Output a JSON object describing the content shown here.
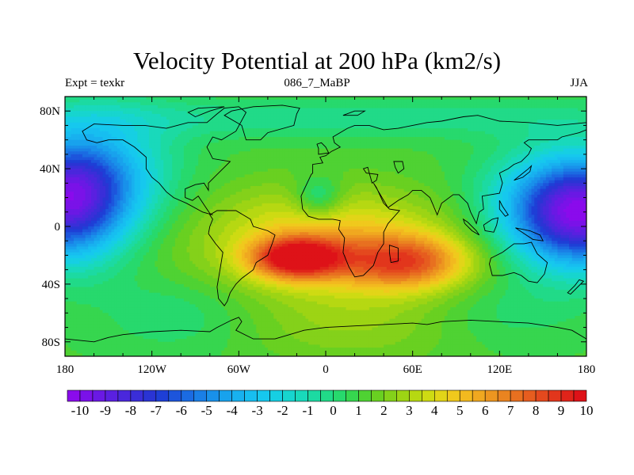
{
  "figure": {
    "title": "Velocity Potential at 200 hPa (km2/s)",
    "subtitle_left": "Expt = texkr",
    "subtitle_center": "086_7_MaBP",
    "subtitle_right": "JJA"
  },
  "axes": {
    "x_ticks": [
      {
        "value": -180,
        "label": "180"
      },
      {
        "value": -120,
        "label": "120W"
      },
      {
        "value": -60,
        "label": "60W"
      },
      {
        "value": 0,
        "label": "0"
      },
      {
        "value": 60,
        "label": "60E"
      },
      {
        "value": 120,
        "label": "120E"
      },
      {
        "value": 180,
        "label": "180"
      }
    ],
    "y_ticks": [
      {
        "value": 80,
        "label": "80N"
      },
      {
        "value": 40,
        "label": "40N"
      },
      {
        "value": 0,
        "label": "0"
      },
      {
        "value": -40,
        "label": "40S"
      },
      {
        "value": -80,
        "label": "80S"
      }
    ],
    "minor_x_step": 20,
    "minor_y_step": 10,
    "lon_range": [
      -180,
      180
    ],
    "lat_range": [
      -90,
      90
    ]
  },
  "colorbar": {
    "levels": [
      -10,
      -9.5,
      -9,
      -8.5,
      -8,
      -7.5,
      -7,
      -6.5,
      -6,
      -5.5,
      -5,
      -4.5,
      -4,
      -3.5,
      -3,
      -2.5,
      -2,
      -1.5,
      -1,
      -0.5,
      0,
      0.5,
      1,
      1.5,
      2,
      2.5,
      3,
      3.5,
      4,
      4.5,
      5,
      5.5,
      6,
      6.5,
      7,
      7.5,
      8,
      8.5,
      9,
      9.5,
      10
    ],
    "labels": [
      "-10",
      "-9",
      "-8",
      "-7",
      "-6",
      "-5",
      "-4",
      "-3",
      "-2",
      "-1",
      "0",
      "1",
      "2",
      "3",
      "4",
      "5",
      "6",
      "7",
      "8",
      "9",
      "10"
    ],
    "colors": [
      "#8a0bec",
      "#7a12e8",
      "#6a19e4",
      "#5a20e0",
      "#4a27dc",
      "#3a2ed8",
      "#2a34d4",
      "#1e3fd6",
      "#1d55dc",
      "#1b6be2",
      "#1a7fe6",
      "#1991ea",
      "#18a2ed",
      "#18b1ef",
      "#17bef0",
      "#16c8ee",
      "#16cfe3",
      "#17d5cf",
      "#19d9bb",
      "#1cdaa2",
      "#21da88",
      "#27d96d",
      "#36d64f",
      "#4fd233",
      "#69d021",
      "#84d11a",
      "#9dd414",
      "#b6d812",
      "#cedb13",
      "#e2d518",
      "#f0c91d",
      "#f2b91f",
      "#f0a820",
      "#ed9620",
      "#ea8420",
      "#e87020",
      "#e65d1f",
      "#e4491e",
      "#e2361c",
      "#e0241a",
      "#de1218"
    ]
  },
  "field": {
    "description_of_units": "km2/s",
    "base_value": 1.6,
    "centers": [
      {
        "lon": -180,
        "lat": 17,
        "amp": -9.5,
        "slon": 30,
        "slat": 28
      },
      {
        "lon": 180,
        "lat": 10,
        "amp": -9.5,
        "slon": 30,
        "slat": 26
      },
      {
        "lon": 145,
        "lat": 10,
        "amp": -3.5,
        "slon": 32,
        "slat": 28
      },
      {
        "lon": -150,
        "lat": 40,
        "amp": -3,
        "slon": 35,
        "slat": 30
      },
      {
        "lon": -20,
        "lat": -22,
        "amp": 7.5,
        "slon": 22,
        "slat": 10
      },
      {
        "lon": 55,
        "lat": -25,
        "amp": 5,
        "slon": 30,
        "slat": 13
      },
      {
        "lon": 10,
        "lat": -18,
        "amp": 3.5,
        "slon": 70,
        "slat": 24
      },
      {
        "lon": -10,
        "lat": 10,
        "amp": 1.2,
        "slon": 50,
        "slat": 18
      },
      {
        "lon": -5,
        "lat": 20,
        "amp": -2.6,
        "slon": 12,
        "slat": 10
      },
      {
        "lon": 20,
        "lat": -70,
        "amp": 1.2,
        "slon": 60,
        "slat": 18
      },
      {
        "lon": 0,
        "lat": 75,
        "amp": -1.5,
        "slon": 180,
        "slat": 10
      },
      {
        "lon": -100,
        "lat": -60,
        "amp": -1.2,
        "slon": 40,
        "slat": 20
      },
      {
        "lon": 120,
        "lat": -60,
        "amp": -1.0,
        "slon": 40,
        "slat": 18
      }
    ]
  },
  "coastlines": [
    {
      "name": "north-america",
      "points": [
        [
          -168,
          66
        ],
        [
          -160,
          71
        ],
        [
          -140,
          70
        ],
        [
          -125,
          70
        ],
        [
          -110,
          68
        ],
        [
          -95,
          72
        ],
        [
          -82,
          72
        ],
        [
          -75,
          78
        ],
        [
          -70,
          82
        ],
        [
          -60,
          83
        ],
        [
          -55,
          79
        ],
        [
          -62,
          66
        ],
        [
          -72,
          60
        ],
        [
          -78,
          62
        ],
        [
          -82,
          55
        ],
        [
          -78,
          47
        ],
        [
          -66,
          45
        ],
        [
          -70,
          41
        ],
        [
          -76,
          35
        ],
        [
          -81,
          30
        ],
        [
          -81,
          25
        ],
        [
          -84,
          30
        ],
        [
          -90,
          29
        ],
        [
          -97,
          26
        ],
        [
          -97,
          20
        ],
        [
          -92,
          18
        ],
        [
          -88,
          21
        ],
        [
          -84,
          15
        ],
        [
          -80,
          9
        ],
        [
          -78,
          8
        ],
        [
          -85,
          10
        ],
        [
          -96,
          16
        ],
        [
          -105,
          20
        ],
        [
          -110,
          24
        ],
        [
          -115,
          30
        ],
        [
          -120,
          34
        ],
        [
          -124,
          40
        ],
        [
          -124,
          48
        ],
        [
          -132,
          55
        ],
        [
          -140,
          60
        ],
        [
          -150,
          60
        ],
        [
          -158,
          58
        ],
        [
          -165,
          60
        ],
        [
          -168,
          66
        ]
      ]
    },
    {
      "name": "greenland",
      "points": [
        [
          -55,
          60
        ],
        [
          -45,
          60
        ],
        [
          -40,
          65
        ],
        [
          -22,
          70
        ],
        [
          -20,
          78
        ],
        [
          -18,
          82
        ],
        [
          -30,
          84
        ],
        [
          -50,
          83
        ],
        [
          -65,
          80
        ],
        [
          -70,
          77
        ],
        [
          -58,
          70
        ],
        [
          -55,
          60
        ]
      ]
    },
    {
      "name": "south-america",
      "points": [
        [
          -80,
          8
        ],
        [
          -75,
          11
        ],
        [
          -62,
          11
        ],
        [
          -52,
          5
        ],
        [
          -50,
          0
        ],
        [
          -40,
          -3
        ],
        [
          -35,
          -6
        ],
        [
          -37,
          -12
        ],
        [
          -40,
          -20
        ],
        [
          -48,
          -25
        ],
        [
          -50,
          -30
        ],
        [
          -58,
          -36
        ],
        [
          -62,
          -40
        ],
        [
          -66,
          -46
        ],
        [
          -68,
          -52
        ],
        [
          -70,
          -55
        ],
        [
          -74,
          -50
        ],
        [
          -75,
          -42
        ],
        [
          -73,
          -30
        ],
        [
          -71,
          -18
        ],
        [
          -76,
          -12
        ],
        [
          -81,
          -5
        ],
        [
          -80,
          0
        ],
        [
          -78,
          5
        ],
        [
          -80,
          8
        ]
      ]
    },
    {
      "name": "afro-eurasia",
      "points": [
        [
          -10,
          36
        ],
        [
          -17,
          21
        ],
        [
          -16,
          12
        ],
        [
          -12,
          7
        ],
        [
          -5,
          5
        ],
        [
          5,
          5
        ],
        [
          10,
          4
        ],
        [
          9,
          -2
        ],
        [
          13,
          -8
        ],
        [
          12,
          -18
        ],
        [
          16,
          -28
        ],
        [
          20,
          -35
        ],
        [
          26,
          -34
        ],
        [
          33,
          -27
        ],
        [
          36,
          -18
        ],
        [
          40,
          -12
        ],
        [
          40,
          -4
        ],
        [
          43,
          2
        ],
        [
          51,
          11
        ],
        [
          44,
          12
        ],
        [
          40,
          16
        ],
        [
          35,
          27
        ],
        [
          33,
          30
        ],
        [
          43,
          13
        ],
        [
          50,
          18
        ],
        [
          57,
          22
        ],
        [
          60,
          25
        ],
        [
          66,
          25
        ],
        [
          72,
          20
        ],
        [
          77,
          8
        ],
        [
          80,
          16
        ],
        [
          88,
          22
        ],
        [
          92,
          22
        ],
        [
          98,
          16
        ],
        [
          100,
          10
        ],
        [
          104,
          2
        ],
        [
          106,
          10
        ],
        [
          109,
          12
        ],
        [
          108,
          21
        ],
        [
          120,
          23
        ],
        [
          122,
          30
        ],
        [
          120,
          37
        ],
        [
          126,
          40
        ],
        [
          130,
          43
        ],
        [
          135,
          45
        ],
        [
          140,
          50
        ],
        [
          142,
          54
        ],
        [
          137,
          58
        ],
        [
          140,
          60
        ],
        [
          150,
          60
        ],
        [
          160,
          60
        ],
        [
          163,
          62
        ],
        [
          175,
          65
        ],
        [
          180,
          67
        ],
        [
          180,
          72
        ],
        [
          160,
          70
        ],
        [
          140,
          72
        ],
        [
          120,
          73
        ],
        [
          105,
          77
        ],
        [
          95,
          76
        ],
        [
          80,
          73
        ],
        [
          70,
          72
        ],
        [
          60,
          70
        ],
        [
          50,
          68
        ],
        [
          40,
          67
        ],
        [
          30,
          70
        ],
        [
          20,
          70
        ],
        [
          15,
          68
        ],
        [
          5,
          62
        ],
        [
          6,
          58
        ],
        [
          10,
          55
        ],
        [
          8,
          54
        ],
        [
          4,
          52
        ],
        [
          0,
          49
        ],
        [
          -4,
          48
        ],
        [
          -2,
          44
        ],
        [
          -9,
          43
        ],
        [
          -9,
          37
        ],
        [
          -10,
          36
        ]
      ]
    },
    {
      "name": "madagascar",
      "points": [
        [
          44,
          -13
        ],
        [
          50,
          -15
        ],
        [
          50,
          -24
        ],
        [
          45,
          -25
        ],
        [
          44,
          -18
        ],
        [
          44,
          -13
        ]
      ]
    },
    {
      "name": "arabian-sea-gap",
      "points": [
        [
          32,
          30
        ],
        [
          35,
          32
        ],
        [
          36,
          36
        ],
        [
          28,
          37
        ],
        [
          26,
          40
        ],
        [
          29,
          41
        ],
        [
          32,
          30
        ]
      ]
    },
    {
      "name": "britain",
      "points": [
        [
          -5,
          50
        ],
        [
          2,
          51
        ],
        [
          0,
          55
        ],
        [
          -3,
          58
        ],
        [
          -6,
          57
        ],
        [
          -5,
          54
        ],
        [
          -5,
          50
        ]
      ]
    },
    {
      "name": "japan",
      "points": [
        [
          130,
          32
        ],
        [
          136,
          34
        ],
        [
          141,
          38
        ],
        [
          142,
          42
        ],
        [
          140,
          40
        ],
        [
          135,
          36
        ],
        [
          130,
          32
        ]
      ]
    },
    {
      "name": "borneo",
      "points": [
        [
          109,
          1
        ],
        [
          115,
          5
        ],
        [
          119,
          6
        ],
        [
          118,
          1
        ],
        [
          116,
          -4
        ],
        [
          110,
          -3
        ],
        [
          109,
          1
        ]
      ]
    },
    {
      "name": "sumatra",
      "points": [
        [
          95,
          5
        ],
        [
          98,
          3
        ],
        [
          104,
          -3
        ],
        [
          106,
          -6
        ],
        [
          101,
          -3
        ],
        [
          96,
          2
        ],
        [
          95,
          5
        ]
      ]
    },
    {
      "name": "new-guinea",
      "points": [
        [
          131,
          -1
        ],
        [
          141,
          -3
        ],
        [
          148,
          -6
        ],
        [
          150,
          -10
        ],
        [
          143,
          -9
        ],
        [
          137,
          -5
        ],
        [
          131,
          -1
        ]
      ]
    },
    {
      "name": "philippines",
      "points": [
        [
          120,
          18
        ],
        [
          122,
          14
        ],
        [
          126,
          8
        ],
        [
          124,
          7
        ],
        [
          120,
          12
        ],
        [
          120,
          18
        ]
      ]
    },
    {
      "name": "australia",
      "points": [
        [
          114,
          -22
        ],
        [
          122,
          -18
        ],
        [
          130,
          -12
        ],
        [
          137,
          -12
        ],
        [
          142,
          -11
        ],
        [
          146,
          -19
        ],
        [
          153,
          -25
        ],
        [
          151,
          -33
        ],
        [
          146,
          -39
        ],
        [
          140,
          -38
        ],
        [
          135,
          -34
        ],
        [
          130,
          -32
        ],
        [
          122,
          -34
        ],
        [
          115,
          -34
        ],
        [
          113,
          -26
        ],
        [
          114,
          -22
        ]
      ]
    },
    {
      "name": "new-zealand",
      "points": [
        [
          167,
          -46
        ],
        [
          172,
          -41
        ],
        [
          175,
          -37
        ],
        [
          178,
          -38
        ],
        [
          174,
          -42
        ],
        [
          169,
          -47
        ],
        [
          167,
          -46
        ]
      ]
    },
    {
      "name": "caspian",
      "points": [
        [
          47,
          45
        ],
        [
          53,
          45
        ],
        [
          54,
          40
        ],
        [
          50,
          37
        ],
        [
          48,
          41
        ],
        [
          47,
          45
        ]
      ]
    },
    {
      "name": "ellesmere",
      "points": [
        [
          -90,
          76
        ],
        [
          -80,
          80
        ],
        [
          -70,
          83
        ],
        [
          -88,
          82
        ],
        [
          -95,
          79
        ],
        [
          -90,
          76
        ]
      ]
    },
    {
      "name": "svalbard",
      "points": [
        [
          12,
          77
        ],
        [
          20,
          80
        ],
        [
          27,
          80
        ],
        [
          22,
          77
        ],
        [
          12,
          77
        ]
      ]
    },
    {
      "name": "antarctica",
      "points": [
        [
          -180,
          -78
        ],
        [
          -160,
          -80
        ],
        [
          -150,
          -77
        ],
        [
          -140,
          -75
        ],
        [
          -120,
          -73
        ],
        [
          -100,
          -72
        ],
        [
          -80,
          -73
        ],
        [
          -75,
          -70
        ],
        [
          -65,
          -65
        ],
        [
          -60,
          -63
        ],
        [
          -58,
          -66
        ],
        [
          -62,
          -72
        ],
        [
          -50,
          -78
        ],
        [
          -35,
          -78
        ],
        [
          -25,
          -75
        ],
        [
          -15,
          -72
        ],
        [
          0,
          -70
        ],
        [
          20,
          -69
        ],
        [
          40,
          -68
        ],
        [
          60,
          -67
        ],
        [
          70,
          -68
        ],
        [
          80,
          -66
        ],
        [
          100,
          -65
        ],
        [
          120,
          -66
        ],
        [
          140,
          -67
        ],
        [
          160,
          -70
        ],
        [
          170,
          -72
        ],
        [
          180,
          -78
        ],
        [
          180,
          -90
        ],
        [
          -180,
          -90
        ],
        [
          -180,
          -78
        ]
      ]
    }
  ]
}
